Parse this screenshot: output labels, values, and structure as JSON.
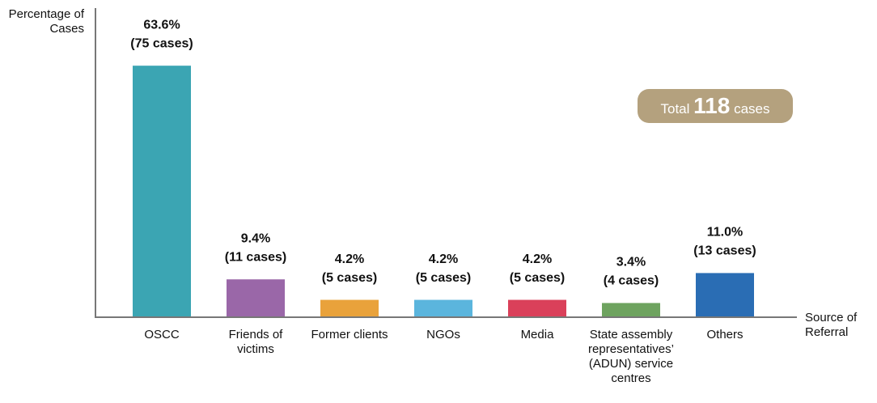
{
  "chart_data": {
    "type": "bar",
    "y_label": "Percentage of Cases",
    "x_label": "Source of Referral",
    "categories": [
      "OSCC",
      "Friends of victims",
      "Former clients",
      "NGOs",
      "Media",
      "State assembly representatives’ (ADUN) service centres",
      "Others"
    ],
    "values": [
      63.6,
      9.4,
      4.2,
      4.2,
      4.2,
      3.4,
      11.0
    ],
    "value_labels": [
      "63.6%",
      "9.4%",
      "4.2%",
      "4.2%",
      "4.2%",
      "3.4%",
      "11.0%"
    ],
    "cases": [
      75,
      11,
      5,
      5,
      5,
      4,
      13
    ],
    "case_labels": [
      "(75 cases)",
      "(11 cases)",
      "(5 cases)",
      "(5 cases)",
      "(5 cases)",
      "(4 cases)",
      "(13 cases)"
    ],
    "colors": [
      "#3ba5b3",
      "#9a67a8",
      "#e9a23b",
      "#5bb5dd",
      "#da405a",
      "#6ea35f",
      "#2a6db4"
    ],
    "ylim": [
      0,
      70
    ],
    "total": {
      "prefix": "Total",
      "value": 118,
      "suffix": "cases"
    }
  }
}
